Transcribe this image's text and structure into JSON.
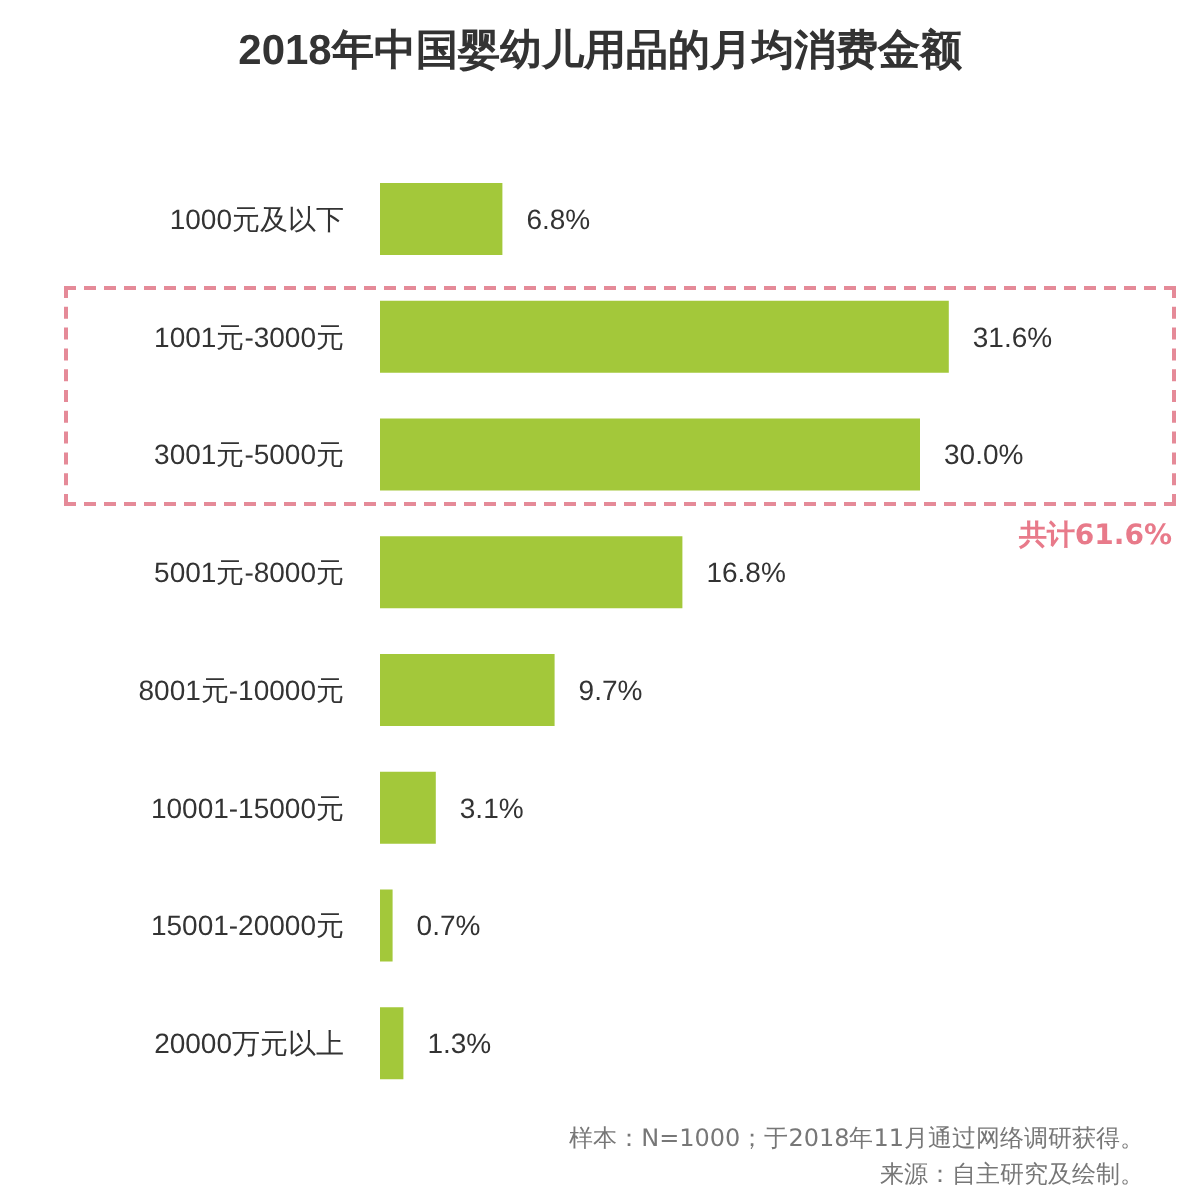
{
  "chart_data": {
    "type": "bar",
    "orientation": "horizontal",
    "title": "2018年中国婴幼儿用品的月均消费金额",
    "categories": [
      "1000元及以下",
      "1001元-3000元",
      "3001元-5000元",
      "5001元-8000元",
      "8001元-10000元",
      "10001-15000元",
      "15001-20000元",
      "20000万元以上"
    ],
    "values": [
      6.8,
      31.6,
      30.0,
      16.8,
      9.7,
      3.1,
      0.7,
      1.3
    ],
    "value_labels": [
      "6.8%",
      "31.6%",
      "30.0%",
      "16.8%",
      "9.7%",
      "3.1%",
      "0.7%",
      "1.3%"
    ],
    "color": "#a3c83a",
    "annotations": [
      "共计61.6%",
      "样本：N=1000；于2018年11月通过网络调研获得。",
      "来源：自主研究及绘制。"
    ]
  }
}
